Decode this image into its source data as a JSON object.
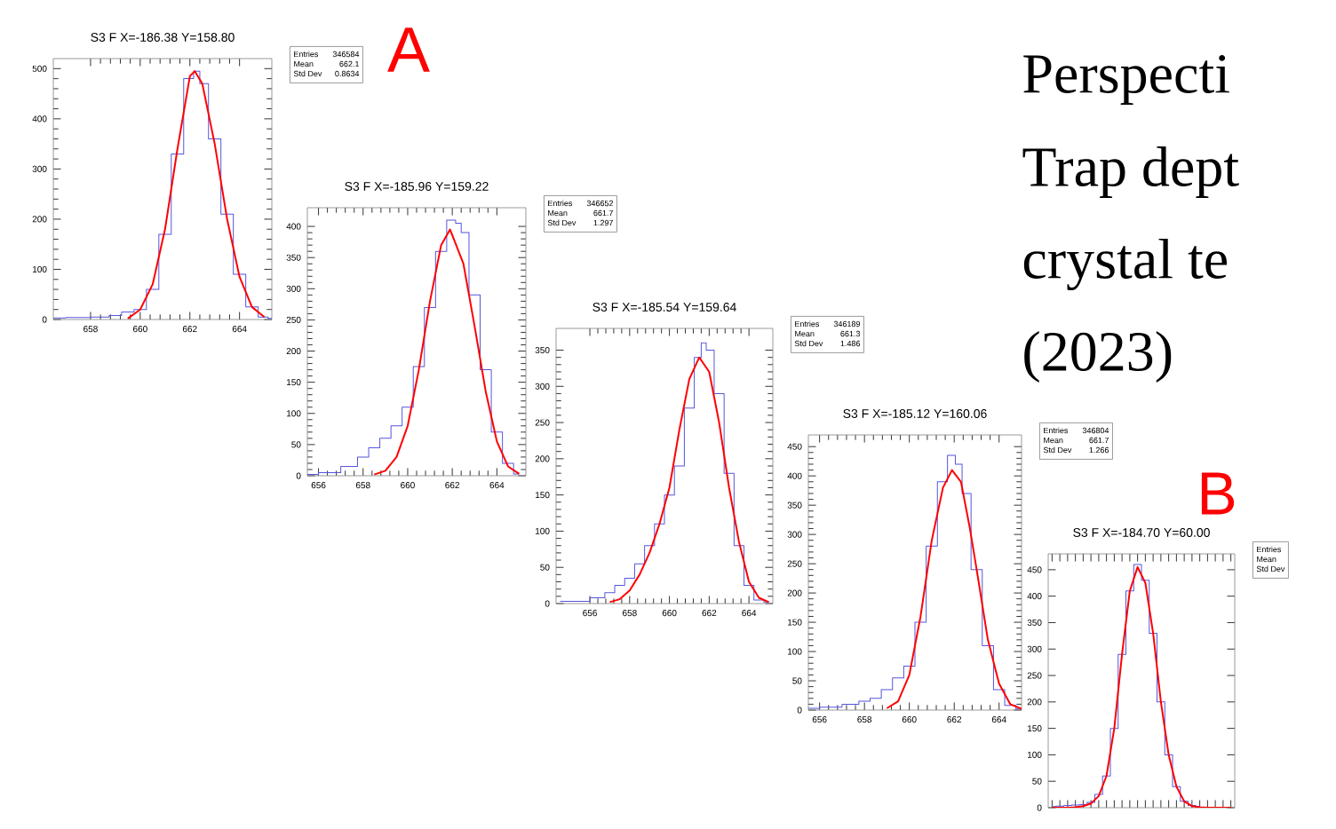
{
  "chart_data": [
    {
      "type": "line",
      "title": "S3 F X=-186.38 Y=158.80",
      "xlim": [
        656.5,
        665.3
      ],
      "ylim": [
        0,
        520
      ],
      "xticks": [
        658,
        660,
        662,
        664
      ],
      "yticks": [
        0,
        100,
        200,
        300,
        400,
        500
      ],
      "series": [
        {
          "type": "step",
          "color": "#5555dd",
          "x": [
            656.5,
            657.5,
            658.5,
            659,
            659.5,
            660,
            660.5,
            661,
            661.5,
            662,
            662.3,
            662.5,
            663,
            663.5,
            664,
            664.5,
            665,
            665.3
          ],
          "values": [
            3,
            4,
            5,
            8,
            15,
            20,
            60,
            170,
            330,
            480,
            495,
            470,
            360,
            210,
            90,
            25,
            5,
            2
          ]
        },
        {
          "type": "line",
          "color": "#ff0000",
          "x": [
            659.5,
            660,
            660.5,
            661,
            661.5,
            662,
            662.2,
            662.5,
            663,
            663.5,
            664,
            664.5,
            665
          ],
          "values": [
            2,
            20,
            70,
            180,
            340,
            485,
            495,
            470,
            350,
            200,
            85,
            25,
            5
          ]
        }
      ],
      "annotations": [
        "Entries",
        "346584",
        "Mean",
        "662.1",
        "Std Dev",
        "0.8634",
        "A"
      ]
    },
    {
      "type": "line",
      "title": "S3 F X=-185.96 Y=159.22",
      "xlim": [
        655.5,
        665.3
      ],
      "ylim": [
        0,
        430
      ],
      "xticks": [
        656,
        658,
        660,
        662,
        664
      ],
      "yticks": [
        0,
        50,
        100,
        150,
        200,
        250,
        300,
        350,
        400
      ],
      "series": [
        {
          "type": "step",
          "color": "#5555dd",
          "x": [
            655.5,
            656.5,
            657.5,
            658,
            658.5,
            659,
            659.5,
            660,
            660.5,
            661,
            661.5,
            662,
            662.3,
            662.5,
            663,
            663.5,
            664,
            664.5,
            665
          ],
          "values": [
            2,
            5,
            15,
            30,
            45,
            60,
            80,
            110,
            175,
            270,
            360,
            410,
            405,
            390,
            290,
            170,
            70,
            20,
            3
          ]
        },
        {
          "type": "line",
          "color": "#ff0000",
          "x": [
            658.5,
            659,
            659.5,
            660,
            660.5,
            661,
            661.5,
            661.9,
            662.5,
            663,
            663.5,
            664,
            664.5,
            665
          ],
          "values": [
            2,
            8,
            30,
            80,
            170,
            280,
            370,
            395,
            340,
            240,
            135,
            55,
            15,
            3
          ]
        }
      ],
      "annotations": [
        "Entries",
        "346652",
        "Mean",
        "661.7",
        "Std Dev",
        "1.297"
      ]
    },
    {
      "type": "line",
      "title": "S3 F X=-185.54 Y=159.64",
      "xlim": [
        654.3,
        665.2
      ],
      "ylim": [
        0,
        380
      ],
      "xticks": [
        656,
        658,
        660,
        662,
        664
      ],
      "yticks": [
        0,
        50,
        100,
        150,
        200,
        250,
        300,
        350
      ],
      "series": [
        {
          "type": "step",
          "color": "#5555dd",
          "x": [
            654.5,
            655.5,
            656.5,
            657,
            657.5,
            658,
            658.5,
            659,
            659.5,
            660,
            660.5,
            661,
            661.5,
            661.7,
            662,
            662.5,
            663,
            663.5,
            664,
            664.5,
            665
          ],
          "values": [
            3,
            3,
            8,
            15,
            25,
            35,
            55,
            80,
            110,
            150,
            190,
            270,
            340,
            360,
            350,
            290,
            180,
            80,
            25,
            5,
            2
          ]
        },
        {
          "type": "line",
          "color": "#ff0000",
          "x": [
            657,
            657.5,
            658,
            658.5,
            659,
            659.5,
            660,
            660.5,
            661,
            661.5,
            662,
            662.5,
            663,
            663.5,
            664,
            664.5,
            665
          ],
          "values": [
            2,
            6,
            18,
            40,
            70,
            110,
            160,
            240,
            310,
            340,
            320,
            250,
            160,
            85,
            30,
            8,
            2
          ]
        }
      ],
      "annotations": [
        "Entries",
        "346189",
        "Mean",
        "661.3",
        "Std Dev",
        "1.486"
      ]
    },
    {
      "type": "line",
      "title": "S3 F X=-185.12 Y=160.06",
      "xlim": [
        655.5,
        665
      ],
      "ylim": [
        0,
        470
      ],
      "xticks": [
        656,
        658,
        660,
        662,
        664
      ],
      "yticks": [
        0,
        50,
        100,
        150,
        200,
        250,
        300,
        350,
        400,
        450
      ],
      "series": [
        {
          "type": "step",
          "color": "#5555dd",
          "x": [
            655.5,
            656.5,
            657.5,
            658,
            658.5,
            659,
            659.5,
            660,
            660.5,
            661,
            661.5,
            661.9,
            662.2,
            662.5,
            663,
            663.5,
            664,
            664.5,
            665
          ],
          "values": [
            3,
            5,
            10,
            15,
            20,
            35,
            55,
            75,
            150,
            280,
            390,
            435,
            420,
            370,
            240,
            110,
            35,
            8,
            2
          ]
        },
        {
          "type": "line",
          "color": "#ff0000",
          "x": [
            659,
            659.5,
            660,
            660.5,
            661,
            661.5,
            661.9,
            662.3,
            662.7,
            663,
            663.5,
            664,
            664.5,
            665
          ],
          "values": [
            3,
            15,
            60,
            160,
            290,
            380,
            410,
            390,
            310,
            240,
            120,
            45,
            10,
            2
          ]
        }
      ],
      "annotations": [
        "Entries",
        "346804",
        "Mean",
        "661.7",
        "Std Dev",
        "1.266"
      ]
    },
    {
      "type": "line",
      "title": "S3 F X=-184.70 Y=60.00",
      "categories": [
        null,
        null,
        null,
        null,
        null,
        null,
        null,
        null,
        null,
        null,
        null,
        null,
        null,
        null,
        null,
        null,
        null,
        null,
        null,
        null,
        null,
        null,
        null,
        null
      ],
      "ylim": [
        0,
        480
      ],
      "yticks": [
        0,
        50,
        100,
        150,
        200,
        250,
        300,
        350,
        400,
        450
      ],
      "tick_labels": "y",
      "series": [
        {
          "type": "step",
          "color": "#5555dd",
          "values": [
            2,
            3,
            4,
            5,
            6,
            10,
            25,
            60,
            150,
            290,
            410,
            460,
            430,
            330,
            200,
            100,
            40,
            12,
            4,
            2,
            null,
            null,
            null,
            null
          ]
        },
        {
          "type": "line",
          "color": "#ff0000",
          "values": [
            0,
            0,
            0,
            1,
            3,
            8,
            22,
            60,
            150,
            290,
            410,
            455,
            425,
            330,
            200,
            100,
            40,
            12,
            3,
            1,
            0,
            0,
            0,
            0
          ]
        }
      ],
      "annotations": [
        "Entries",
        "Mean",
        "Std Dev",
        "B"
      ]
    },
    {
      "type": "other",
      "annotations": [
        "Perspecti",
        "Trap dept",
        "crystal te",
        "(2023)"
      ]
    }
  ]
}
